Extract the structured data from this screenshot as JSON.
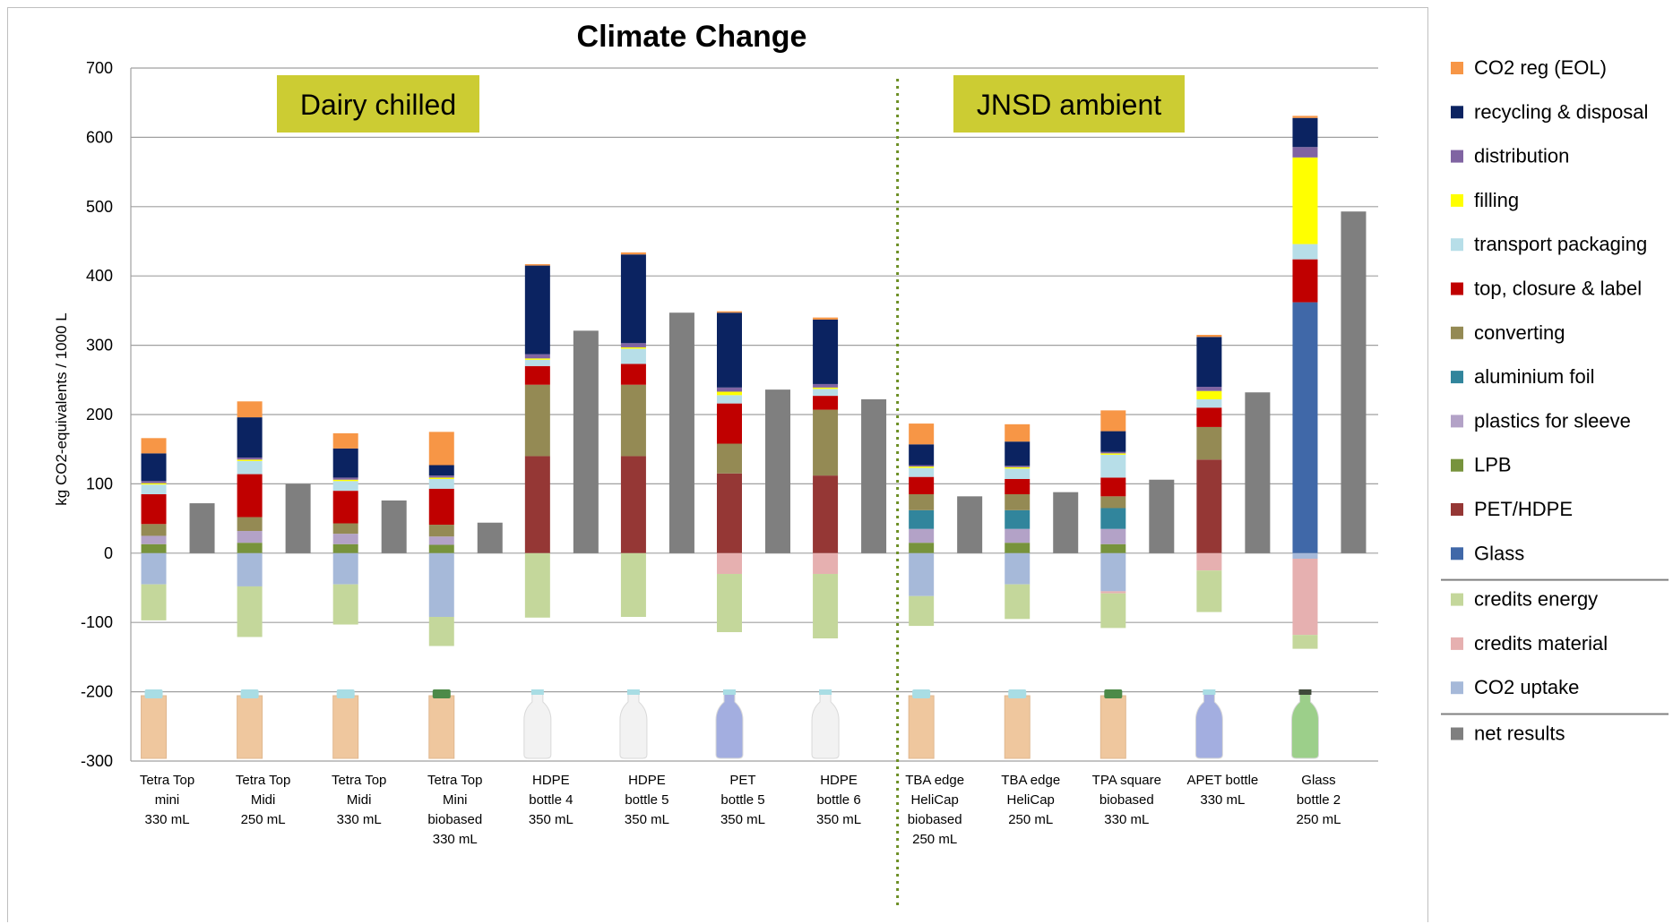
{
  "chart_data": {
    "type": "bar",
    "title": "Climate Change",
    "ylabel": "kg CO2-equivalents / 1000 L",
    "ylim": [
      -300,
      700
    ],
    "yticks": [
      700,
      600,
      500,
      400,
      300,
      200,
      100,
      0,
      -100,
      -200,
      -300
    ],
    "grid": true,
    "legend_position": "right",
    "sections": [
      {
        "label": "Dairy chilled",
        "first": 0,
        "last": 7
      },
      {
        "label": "JNSD ambient",
        "first": 8,
        "last": 12
      }
    ],
    "categories": [
      [
        "Tetra Top",
        "mini",
        "330 mL"
      ],
      [
        "Tetra Top",
        "Midi",
        "250 mL"
      ],
      [
        "Tetra Top",
        "Midi",
        "330 mL"
      ],
      [
        "Tetra Top",
        "Mini",
        "biobased",
        "330 mL"
      ],
      [
        "HDPE",
        "bottle 4",
        "350 mL"
      ],
      [
        "HDPE",
        "bottle 5",
        "350 mL"
      ],
      [
        "PET",
        "bottle 5",
        "350 mL"
      ],
      [
        "HDPE",
        "bottle 6",
        "350 mL"
      ],
      [
        "TBA edge",
        "HeliCap",
        "biobased",
        "250 mL"
      ],
      [
        "TBA edge",
        "HeliCap",
        "250 mL"
      ],
      [
        "TPA square",
        "biobased",
        "330 mL"
      ],
      [
        "APET bottle",
        "330 mL"
      ],
      [
        "Glass",
        "bottle 2",
        "250 mL"
      ]
    ],
    "stack_order": [
      "Glass",
      "PET/HDPE",
      "LPB",
      "plastics for sleeve",
      "aluminium foil",
      "converting",
      "top, closure & label",
      "transport packaging",
      "filling",
      "distribution",
      "recycling & disposal",
      "CO2 reg (EOL)"
    ],
    "series": [
      {
        "name": "CO2 reg (EOL)",
        "color": "#f79646",
        "values": [
          22,
          23,
          22,
          48,
          2,
          3,
          2,
          3,
          30,
          25,
          30,
          3,
          3
        ]
      },
      {
        "name": "recycling & disposal",
        "color": "#0b2361",
        "values": [
          40,
          58,
          42,
          15,
          128,
          128,
          108,
          93,
          30,
          35,
          30,
          72,
          42
        ]
      },
      {
        "name": "distribution",
        "color": "#8064a2",
        "values": [
          3,
          3,
          3,
          3,
          6,
          6,
          6,
          5,
          2,
          2,
          2,
          6,
          15
        ]
      },
      {
        "name": "filling",
        "color": "#ffff00",
        "values": [
          2,
          2,
          2,
          2,
          2,
          2,
          5,
          2,
          2,
          2,
          2,
          12,
          125
        ]
      },
      {
        "name": "transport packaging",
        "color": "#b7dee8",
        "values": [
          14,
          19,
          14,
          14,
          9,
          22,
          12,
          10,
          13,
          15,
          33,
          12,
          22
        ]
      },
      {
        "name": "top, closure & label",
        "color": "#c00000",
        "values": [
          43,
          62,
          47,
          52,
          27,
          30,
          58,
          20,
          25,
          22,
          27,
          28,
          62
        ]
      },
      {
        "name": "converting",
        "color": "#948a54",
        "values": [
          17,
          20,
          15,
          17,
          103,
          103,
          43,
          95,
          23,
          23,
          17,
          47,
          0
        ]
      },
      {
        "name": "aluminium foil",
        "color": "#31859c",
        "values": [
          0,
          0,
          0,
          0,
          0,
          0,
          0,
          0,
          27,
          27,
          30,
          0,
          0
        ]
      },
      {
        "name": "plastics for sleeve",
        "color": "#b3a2c7",
        "values": [
          12,
          17,
          15,
          12,
          0,
          0,
          0,
          0,
          20,
          20,
          22,
          0,
          0
        ]
      },
      {
        "name": "LPB",
        "color": "#77933c",
        "values": [
          13,
          15,
          13,
          12,
          0,
          0,
          0,
          0,
          15,
          15,
          13,
          0,
          0
        ]
      },
      {
        "name": "PET/HDPE",
        "color": "#953735",
        "values": [
          0,
          0,
          0,
          0,
          140,
          140,
          115,
          112,
          0,
          0,
          0,
          135,
          0
        ]
      },
      {
        "name": "Glass",
        "color": "#4068a8",
        "values": [
          0,
          0,
          0,
          0,
          0,
          0,
          0,
          0,
          0,
          0,
          0,
          0,
          362
        ]
      },
      {
        "name": "credits energy",
        "color": "#c4d79b",
        "values": [
          -52,
          -73,
          -58,
          -42,
          -93,
          -92,
          -84,
          -93,
          -43,
          -50,
          -50,
          -60,
          -20
        ]
      },
      {
        "name": "credits material",
        "color": "#e6b0b0",
        "values": [
          0,
          0,
          0,
          0,
          0,
          0,
          -30,
          -30,
          0,
          0,
          -3,
          -25,
          -110
        ]
      },
      {
        "name": "CO2 uptake",
        "color": "#a6b9d9",
        "values": [
          -45,
          -48,
          -45,
          -92,
          0,
          0,
          0,
          0,
          -62,
          -45,
          -55,
          0,
          -8
        ]
      },
      {
        "name": "net results",
        "color": "#7f7f7f",
        "values": [
          72,
          100,
          76,
          44,
          321,
          347,
          236,
          222,
          82,
          88,
          106,
          232,
          493
        ]
      }
    ],
    "legend_groups": [
      [
        "CO2 reg (EOL)",
        "recycling & disposal",
        "distribution",
        "filling",
        "transport packaging",
        "top, closure & label",
        "converting",
        "aluminium foil",
        "plastics for sleeve",
        "LPB",
        "PET/HDPE",
        "Glass"
      ],
      [
        "credits energy",
        "credits material",
        "CO2 uptake"
      ],
      [
        "net results"
      ]
    ],
    "package_icons": [
      "carton",
      "carton",
      "carton",
      "carton-green-cap",
      "white-bottle",
      "white-bottle",
      "blue-bottle",
      "white-bottle",
      "carton",
      "carton",
      "carton-square",
      "blue-bottle",
      "green-glass-bottle"
    ]
  }
}
